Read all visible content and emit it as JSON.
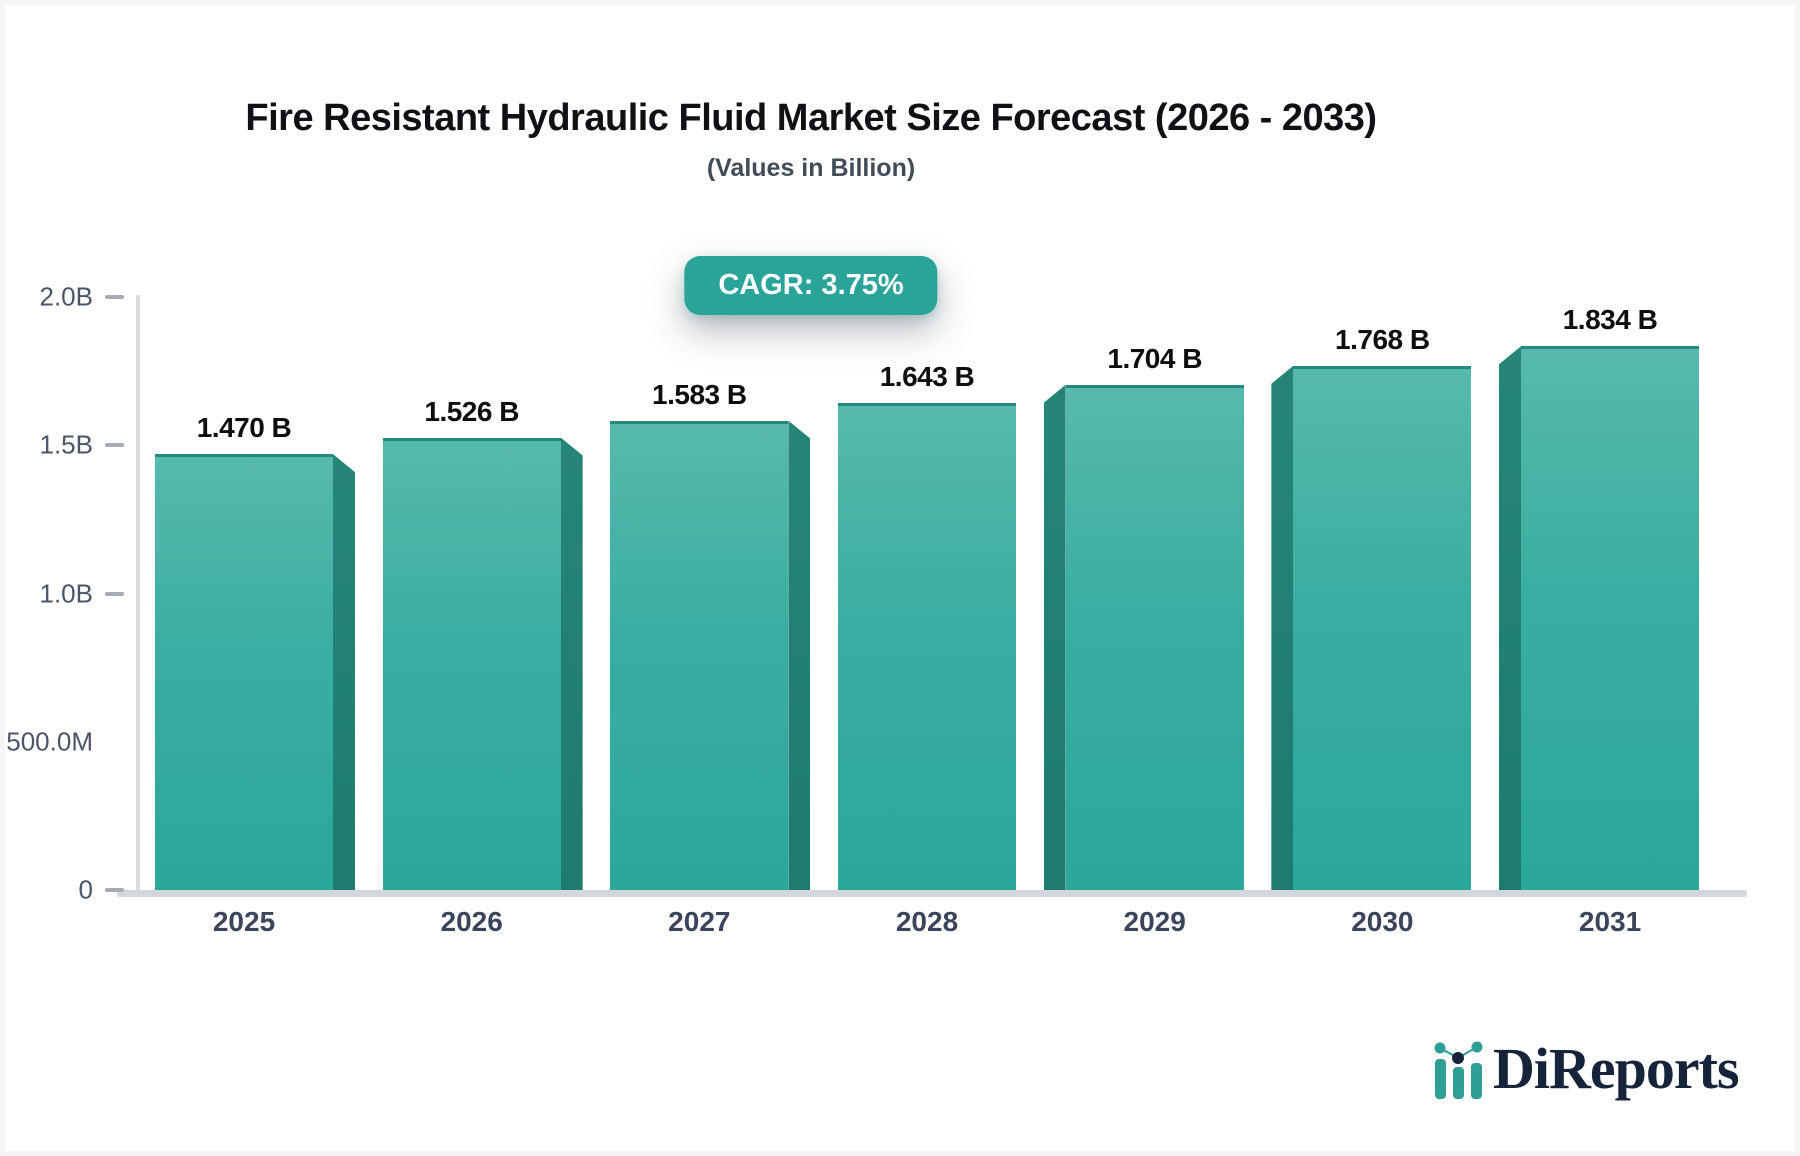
{
  "header": {
    "title": "Fire Resistant Hydraulic Fluid Market Size Forecast (2026 - 2033)",
    "subtitle": "(Values in Billion)",
    "cagr_badge": "CAGR: 3.75%"
  },
  "chart_data": {
    "type": "bar",
    "categories": [
      "2025",
      "2026",
      "2027",
      "2028",
      "2029",
      "2030",
      "2031"
    ],
    "values": [
      1.47,
      1.526,
      1.583,
      1.643,
      1.704,
      1.768,
      1.834
    ],
    "value_labels": [
      "1.470 B",
      "1.526 B",
      "1.583 B",
      "1.643 B",
      "1.704 B",
      "1.768 B",
      "1.834 B"
    ],
    "title": "Fire Resistant Hydraulic Fluid Market Size Forecast (2026 - 2033)",
    "xlabel": "",
    "ylabel": "",
    "ylim": [
      0,
      2.0
    ],
    "yticks": [
      {
        "label": "2.0B",
        "value": 2.0,
        "dash": true
      },
      {
        "label": "1.5B",
        "value": 1.5,
        "dash": true
      },
      {
        "label": "1.0B",
        "value": 1.0,
        "dash": true
      },
      {
        "label": "500.0M",
        "value": 0.5,
        "dash": false
      },
      {
        "label": "0",
        "value": 0.0,
        "dash": true
      }
    ],
    "grid": false,
    "legend": false,
    "bar_style": "3d-bevel",
    "colors": {
      "bar_top": "#57b9ad",
      "bar_bottom": "#2aa89a",
      "bar_side": "#1f7c71",
      "bar_top_edge": "#23897c",
      "badge_bg": "#2aa399",
      "baseline": "#d3d6dc",
      "axis_line": "#d9dce1",
      "tick": "#a6abb5",
      "y_label": "#4b5569",
      "x_label": "#3a455c",
      "value_label": "#0d0e10"
    }
  },
  "logo": {
    "text": "DiReports",
    "icon": "bar-line-chart-icon",
    "text_color": "#16243a",
    "icon_teal": "#2f9e94",
    "icon_navy": "#16243a"
  }
}
